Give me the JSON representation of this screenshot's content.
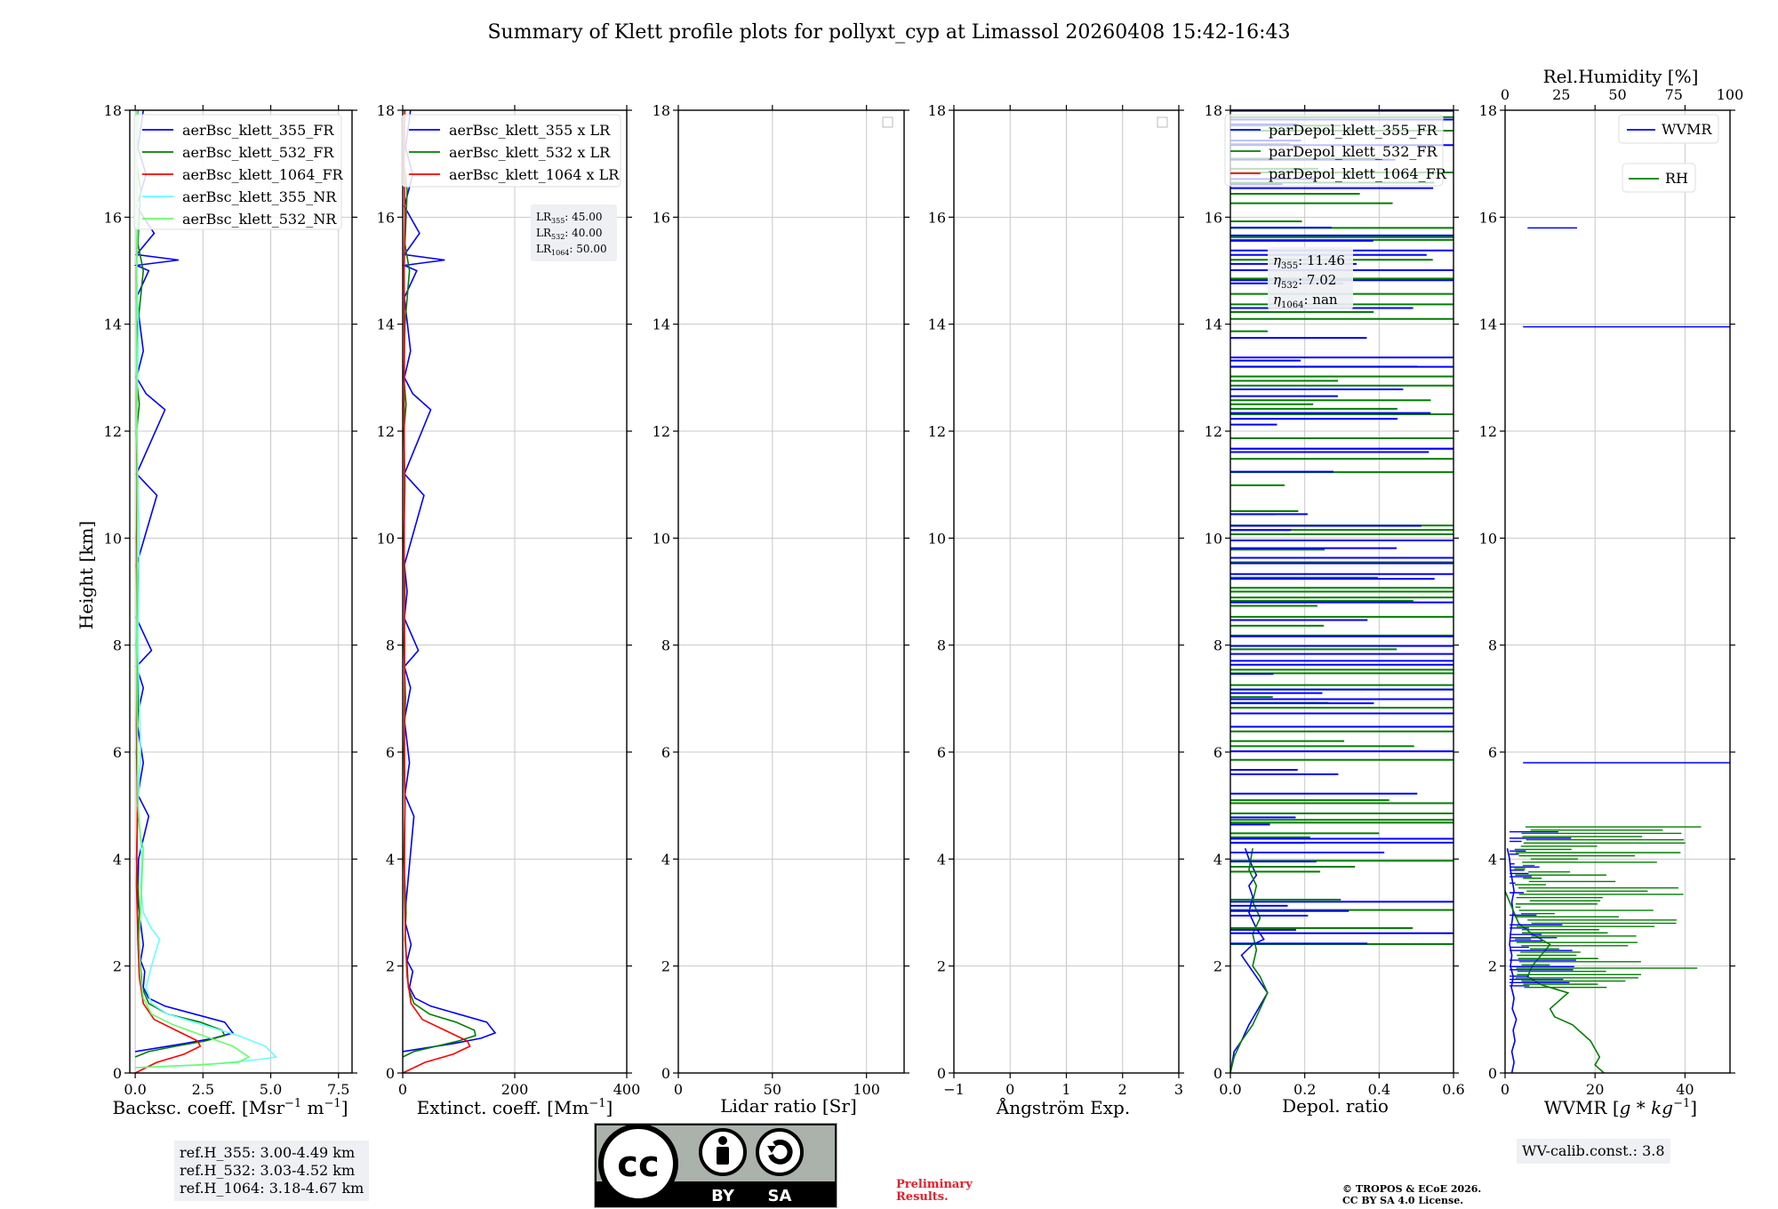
{
  "title": "Summary of Klett profile plots for pollyxt_cyp at Limassol 20260408 15:42-16:43",
  "y_axis_label": "Height [km]",
  "colors": {
    "b355": "#0000ff",
    "b532": "#007f00",
    "b1064": "#ff0000",
    "n355": "#66ffff",
    "n532": "#66ff66",
    "grid": "#c8c8c8",
    "footer_bg": "#eef0f3",
    "prelim": "#e4202a"
  },
  "chart_data": [
    {
      "id": "bsc",
      "type": "line",
      "xlabel_main": "Backsc. coeff. [Msr",
      "xlabel_sup1": "−1",
      "xlabel_mid": " m",
      "xlabel_sup2": "−1",
      "xlabel_end": "]",
      "xlim": [
        -0.2,
        8.0
      ],
      "ylim": [
        0,
        18
      ],
      "x_ticks": [
        0.0,
        2.5,
        5.0,
        7.5
      ],
      "x_tick_labels": [
        "0.0",
        "2.5",
        "5.0",
        "7.5"
      ],
      "y_ticks": [
        0,
        2,
        4,
        6,
        8,
        10,
        12,
        14,
        16,
        18
      ],
      "legend": [
        "aerBsc_klett_355_FR",
        "aerBsc_klett_532_FR",
        "aerBsc_klett_1064_FR",
        "aerBsc_klett_355_NR",
        "aerBsc_klett_532_NR"
      ],
      "legend_placement": "top-right",
      "series": [
        {
          "name": "aerBsc_klett_355_FR",
          "color_key": "b355",
          "x": [
            0.0,
            0.6,
            1.8,
            2.9,
            3.6,
            3.3,
            2.2,
            1.1,
            0.5,
            0.3,
            0.35,
            0.2,
            0.3,
            0.2,
            0.1,
            0.12,
            0.5,
            0.1,
            0.3,
            0.05,
            0.3,
            0.05,
            0.6,
            0.05,
            0.1,
            0.05,
            0.8,
            0.05,
            1.1,
            0.4,
            0.05,
            0.3,
            0.05,
            0.5,
            0.05,
            1.6,
            0.05,
            0.7,
            0.05,
            0.4,
            0.1,
            0.3
          ],
          "y": [
            0.4,
            0.45,
            0.55,
            0.65,
            0.75,
            0.95,
            1.1,
            1.25,
            1.4,
            1.6,
            1.9,
            2.1,
            2.4,
            2.8,
            3.2,
            4.0,
            4.8,
            5.2,
            5.8,
            6.6,
            7.2,
            7.6,
            7.9,
            8.5,
            9.0,
            9.5,
            10.8,
            11.2,
            12.4,
            12.7,
            13.0,
            13.5,
            14.5,
            15.0,
            15.1,
            15.2,
            15.3,
            15.7,
            16.2,
            16.8,
            17.3,
            18.0
          ]
        },
        {
          "name": "aerBsc_klett_532_FR",
          "color_key": "b532",
          "x": [
            0.0,
            0.5,
            1.5,
            2.6,
            3.3,
            3.2,
            2.4,
            1.2,
            0.5,
            0.25,
            0.2,
            0.1,
            0.15,
            0.05,
            0.1,
            0.05,
            0.12,
            0.05,
            0.1,
            0.05,
            0.1,
            0.05,
            0.15,
            0.05,
            0.1,
            0.3,
            0.1,
            0.2,
            0.05,
            0.1
          ],
          "y": [
            0.3,
            0.4,
            0.5,
            0.6,
            0.7,
            0.8,
            0.95,
            1.1,
            1.3,
            1.6,
            2.0,
            2.5,
            3.0,
            4.0,
            5.0,
            6.0,
            7.0,
            8.0,
            9.0,
            10.0,
            11.0,
            12.0,
            12.5,
            13.0,
            14.0,
            15.0,
            15.5,
            16.5,
            17.0,
            18.0
          ]
        },
        {
          "name": "aerBsc_klett_1064_FR",
          "color_key": "b1064",
          "x": [
            0.0,
            0.8,
            1.8,
            2.4,
            2.3,
            1.5,
            0.7,
            0.3,
            0.15,
            0.1,
            0.05,
            0.08,
            0.05,
            0.07,
            0.05,
            0.06,
            0.05,
            0.06,
            0.05,
            0.08,
            0.05,
            0.07
          ],
          "y": [
            0.0,
            0.2,
            0.35,
            0.5,
            0.6,
            0.8,
            1.0,
            1.3,
            1.8,
            2.5,
            3.5,
            5.0,
            6.5,
            8.0,
            9.5,
            11.0,
            12.5,
            13.5,
            15.0,
            16.0,
            17.0,
            18.0
          ]
        },
        {
          "name": "aerBsc_klett_355_NR",
          "color_key": "n355",
          "x": [
            0.0,
            2.5,
            4.5,
            5.2,
            4.8,
            3.8,
            2.5,
            1.2,
            0.6,
            0.4,
            0.6,
            0.9,
            0.6,
            0.3,
            0.2,
            0.25,
            0.1,
            0.2,
            0.1,
            0.15,
            0.05,
            0.12,
            0.05,
            0.1,
            0.05,
            0.08
          ],
          "y": [
            0.1,
            0.15,
            0.25,
            0.3,
            0.5,
            0.7,
            0.9,
            1.1,
            1.3,
            1.6,
            2.0,
            2.5,
            2.7,
            3.0,
            3.5,
            4.0,
            5.0,
            6.0,
            8.0,
            10.0,
            12.0,
            14.0,
            15.0,
            16.0,
            17.0,
            18.0
          ]
        },
        {
          "name": "aerBsc_klett_532_NR",
          "color_key": "n532",
          "x": [
            0.0,
            2.2,
            3.8,
            4.2,
            3.6,
            2.5,
            1.4,
            0.6,
            0.3,
            0.2,
            0.15,
            0.3,
            0.2,
            0.1,
            0.05,
            0.08,
            0.05,
            0.07,
            0.05
          ],
          "y": [
            0.1,
            0.15,
            0.2,
            0.3,
            0.5,
            0.7,
            0.9,
            1.1,
            1.4,
            1.8,
            2.5,
            4.2,
            4.4,
            5.0,
            8.0,
            10.0,
            14.0,
            16.0,
            18.0
          ]
        }
      ]
    },
    {
      "id": "ext",
      "type": "line",
      "xlabel_main": "Extinct. coeff. [Mm",
      "xlabel_sup1": "−1",
      "xlabel_end": "]",
      "xlim": [
        0,
        400
      ],
      "ylim": [
        0,
        18
      ],
      "x_ticks": [
        0,
        200,
        400
      ],
      "x_tick_labels": [
        "0",
        "200",
        "400"
      ],
      "y_ticks": [
        0,
        2,
        4,
        6,
        8,
        10,
        12,
        14,
        16,
        18
      ],
      "legend": [
        "aerBsc_klett_355 x LR",
        "aerBsc_klett_532 x LR",
        "aerBsc_klett_1064 x LR"
      ],
      "legend_placement": "top-right",
      "lidar_ratios": {
        "lr355": "45.00",
        "lr532": "40.00",
        "lr1064": "50.00"
      },
      "series": [
        {
          "name": "aerBsc_klett_355 x LR",
          "color_key": "b355",
          "x": [
            0,
            30,
            90,
            140,
            165,
            150,
            100,
            50,
            22,
            12,
            18,
            8,
            15,
            5,
            6,
            20,
            4,
            12,
            3,
            14,
            3,
            28,
            3,
            8,
            3,
            38,
            3,
            50,
            18,
            3,
            14,
            3,
            25,
            3,
            75,
            3,
            30,
            3,
            18,
            5,
            14
          ],
          "y": [
            0.4,
            0.45,
            0.55,
            0.65,
            0.75,
            0.95,
            1.1,
            1.25,
            1.4,
            1.6,
            1.9,
            2.1,
            2.4,
            2.8,
            3.2,
            4.8,
            5.2,
            5.8,
            6.6,
            7.2,
            7.6,
            7.9,
            8.5,
            9.0,
            9.5,
            10.8,
            11.2,
            12.4,
            12.7,
            13.0,
            13.5,
            14.5,
            15.0,
            15.1,
            15.2,
            15.3,
            15.7,
            16.2,
            16.8,
            17.3,
            18.0
          ]
        },
        {
          "name": "aerBsc_klett_532 x LR",
          "color_key": "b532",
          "x": [
            0,
            20,
            60,
            100,
            130,
            128,
            95,
            48,
            20,
            10,
            8,
            4,
            6,
            2,
            4,
            2,
            5,
            2,
            4,
            2,
            4,
            2,
            6,
            2,
            4,
            12,
            4,
            8,
            2,
            4
          ],
          "y": [
            0.3,
            0.4,
            0.5,
            0.6,
            0.7,
            0.8,
            0.95,
            1.1,
            1.3,
            1.6,
            2.0,
            2.5,
            3.0,
            4.0,
            5.0,
            6.0,
            7.0,
            8.0,
            9.0,
            10.0,
            11.0,
            12.0,
            12.5,
            13.0,
            14.0,
            15.0,
            15.5,
            16.5,
            17.0,
            18.0
          ]
        },
        {
          "name": "aerBsc_klett_1064 x LR",
          "color_key": "b1064",
          "x": [
            0,
            40,
            90,
            120,
            115,
            75,
            35,
            15,
            8,
            5,
            3,
            4,
            3,
            3.5,
            2.5,
            3,
            2.5,
            3,
            2.5,
            4,
            2.5,
            3.5
          ],
          "y": [
            0.0,
            0.2,
            0.35,
            0.5,
            0.6,
            0.8,
            1.0,
            1.3,
            1.8,
            2.5,
            3.5,
            5.0,
            6.5,
            8.0,
            9.5,
            11.0,
            12.5,
            13.5,
            15.0,
            16.0,
            17.0,
            18.0
          ]
        }
      ]
    },
    {
      "id": "lr",
      "type": "line",
      "xlabel_main": "Lidar ratio [Sr]",
      "xlim": [
        0,
        120
      ],
      "ylim": [
        0,
        18
      ],
      "x_ticks": [
        0,
        50,
        100
      ],
      "x_tick_labels": [
        "0",
        "50",
        "100"
      ],
      "y_ticks": [
        0,
        2,
        4,
        6,
        8,
        10,
        12,
        14,
        16,
        18
      ],
      "series": []
    },
    {
      "id": "ang",
      "type": "line",
      "xlabel_main": "Ångström Exp.",
      "xlim": [
        -1,
        3
      ],
      "ylim": [
        0,
        18
      ],
      "x_ticks": [
        -1,
        0,
        1,
        2,
        3
      ],
      "x_tick_labels": [
        "−1",
        "0",
        "1",
        "2",
        "3"
      ],
      "y_ticks": [
        0,
        2,
        4,
        6,
        8,
        10,
        12,
        14,
        16,
        18
      ],
      "series": []
    },
    {
      "id": "depol",
      "type": "line",
      "xlabel_main": "Depol. ratio",
      "xlim": [
        0,
        0.6
      ],
      "ylim": [
        0,
        18
      ],
      "x_ticks": [
        0.0,
        0.2,
        0.4,
        0.6
      ],
      "x_tick_labels": [
        "0.0",
        "0.2",
        "0.4",
        "0.6"
      ],
      "y_ticks": [
        0,
        2,
        4,
        6,
        8,
        10,
        12,
        14,
        16,
        18
      ],
      "legend": [
        "parDepol_klett_355_FR",
        "parDepol_klett_532_FR",
        "parDepol_klett_1064_FR"
      ],
      "legend_placement": "top-right",
      "angstrom": {
        "e355": "11.46",
        "e532": "7.02",
        "e1064": "nan"
      },
      "series": [
        {
          "name": "parDepol_klett_355_FR",
          "color_key": "b355",
          "x": [
            0.0,
            0.01,
            0.03,
            0.05,
            0.1,
            0.05,
            0.03,
            0.06,
            0.09,
            0.07,
            0.05,
            0.06,
            0.05,
            0.07,
            0.05,
            0.04
          ],
          "y": [
            0.0,
            0.4,
            0.6,
            0.9,
            1.5,
            2.0,
            2.2,
            2.4,
            2.5,
            2.7,
            3.0,
            3.3,
            3.5,
            3.7,
            4.0,
            4.2
          ]
        },
        {
          "name": "parDepol_klett_532_FR",
          "color_key": "b532",
          "x": [
            0.0,
            0.01,
            0.03,
            0.06,
            0.08,
            0.1,
            0.08,
            0.06,
            0.07,
            0.06,
            0.08,
            0.06,
            0.07,
            0.05,
            0.06
          ],
          "y": [
            0.0,
            0.3,
            0.6,
            0.9,
            1.2,
            1.5,
            1.8,
            2.0,
            2.3,
            2.6,
            2.9,
            3.2,
            3.5,
            3.8,
            4.2
          ]
        }
      ],
      "spike_bands": {
        "b355": [
          0.8,
          0.36,
          0.4,
          0.35
        ],
        "b532": [
          0.6,
          0.3,
          0.2,
          0.25
        ]
      }
    },
    {
      "id": "wv",
      "type": "line",
      "xlabel_main": "WVMR [",
      "xlabel_math": "g * kg",
      "xlabel_sup1": "−1",
      "xlabel_end": "]",
      "xlim": [
        0,
        50
      ],
      "ylim": [
        0,
        18
      ],
      "x_ticks": [
        0,
        20,
        40
      ],
      "x_tick_labels": [
        "0",
        "20",
        "40"
      ],
      "top_xlabel": "Rel.Humidity [%]",
      "top_xlim": [
        0,
        100
      ],
      "top_ticks": [
        0,
        25,
        50,
        75,
        100
      ],
      "top_tick_labels": [
        "0",
        "25",
        "50",
        "75",
        "100"
      ],
      "y_ticks": [
        0,
        2,
        4,
        6,
        8,
        10,
        12,
        14,
        16,
        18
      ],
      "legend": [
        "WVMR",
        "RH"
      ],
      "legend_placement": "top-right",
      "series": [
        {
          "name": "WVMR",
          "color_key": "b355",
          "x": [
            1.5,
            2.0,
            1.5,
            2.2,
            1.8,
            2.5,
            1.6,
            2.0,
            1.4,
            1.8,
            1.2,
            1.5,
            1.0,
            1.2,
            1.5,
            1.8,
            1.5,
            2.0,
            1.6,
            1.2,
            1.0,
            0.5
          ],
          "y": [
            0.0,
            0.2,
            0.4,
            0.6,
            0.8,
            1.0,
            1.2,
            1.4,
            1.6,
            1.8,
            2.0,
            2.2,
            2.4,
            2.6,
            2.8,
            3.0,
            3.2,
            3.4,
            3.6,
            3.8,
            4.0,
            4.2
          ]
        },
        {
          "name": "RH",
          "color_key": "b532",
          "x": [
            22,
            20,
            21,
            20,
            19,
            17,
            15,
            11,
            10,
            12,
            14,
            8,
            5,
            6,
            8,
            10,
            6,
            3,
            2,
            1,
            0
          ],
          "y": [
            0.0,
            0.15,
            0.3,
            0.45,
            0.6,
            0.75,
            0.9,
            1.05,
            1.2,
            1.35,
            1.5,
            1.65,
            1.8,
            2.0,
            2.2,
            2.4,
            2.6,
            2.8,
            3.0,
            3.2,
            3.4
          ]
        }
      ],
      "wvmr_isolated": [
        {
          "x0": 5,
          "x1": 16,
          "y": 15.8
        },
        {
          "x0": 4,
          "x1": 50,
          "y": 13.95
        },
        {
          "x0": 4,
          "x1": 50,
          "y": 5.8
        }
      ]
    }
  ],
  "footer": {
    "ref_h_355": "ref.H_355: 3.00-4.49 km",
    "ref_h_532": "ref.H_532: 3.03-4.52 km",
    "ref_h_1064": "ref.H_1064: 3.18-4.67 km",
    "preliminary_line1": "Preliminary",
    "preliminary_line2": "Results.",
    "copyright_line1": "© TROPOS & ECoE 2026.",
    "copyright_line2": "CC BY SA 4.0 License.",
    "wv_calib": "WV-calib.const.: 3.8",
    "license_by": "BY",
    "license_sa": "SA",
    "license_cc": "cc"
  }
}
